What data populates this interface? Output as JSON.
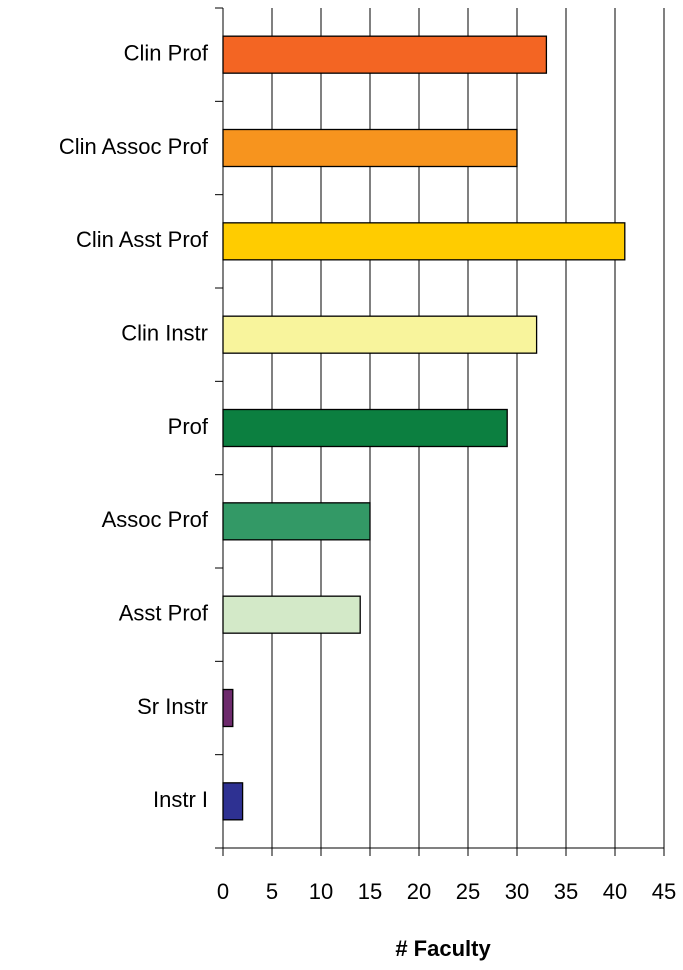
{
  "chart_data": {
    "type": "barh",
    "categories": [
      "Clin Prof",
      "Clin Assoc Prof",
      "Clin Asst Prof",
      "Clin Instr",
      "Prof",
      "Assoc Prof",
      "Asst Prof",
      "Sr Instr",
      "Instr I"
    ],
    "values": [
      33,
      30,
      41,
      32,
      29,
      15,
      14,
      1,
      2
    ],
    "colors": [
      "#f36523",
      "#f7941e",
      "#ffcc00",
      "#f8f49c",
      "#0c7f40",
      "#339966",
      "#d3e9c8",
      "#6d2a6c",
      "#2e3192"
    ],
    "xlabel": "# Faculty",
    "xlim": [
      0,
      45
    ],
    "xticks": [
      0,
      5,
      10,
      15,
      20,
      25,
      30,
      35,
      40,
      45
    ],
    "grid": true
  }
}
